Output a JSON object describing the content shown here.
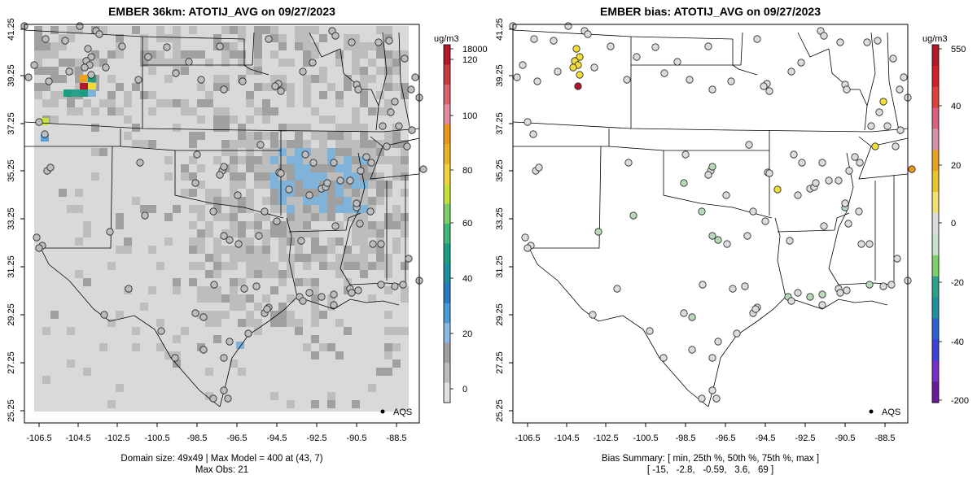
{
  "left": {
    "title": "EMBER 36km: ATOTIJ_AVG on 09/27/2023",
    "legend_label": "AQS",
    "cbar_unit": "ug/m3",
    "cbar_ticks": [
      "18000",
      "120",
      "100",
      "80",
      "60",
      "40",
      "20",
      "0"
    ],
    "summary_line1": "Domain size: 49x49 | Max Model = 400 at (43, 7)",
    "summary_line2": "Max Obs: 21"
  },
  "right": {
    "title": "EMBER bias: ATOTIJ_AVG on 09/27/2023",
    "legend_label": "AQS",
    "cbar_unit": "ug/m3",
    "cbar_ticks": [
      "550",
      "40",
      "20",
      "0",
      "-20",
      "-40",
      "-200"
    ],
    "summary_line1": "Bias Summary: [ min, 25th %, 50th %, 75th %, max ]",
    "summary_line2": "[ -15,   -2.8,   -0.59,   3.6,   69 ]"
  },
  "axes": {
    "x_ticks": [
      "-106.5",
      "-104.5",
      "-102.5",
      "-100.5",
      "-98.5",
      "-96.5",
      "-94.5",
      "-92.5",
      "-90.5",
      "-88.5"
    ],
    "y_ticks": [
      "25.25",
      "27.25",
      "29.25",
      "31.25",
      "33.25",
      "35.25",
      "37.25",
      "39.25",
      "41.25"
    ]
  },
  "colors": {
    "model_gray_light": "#d9d9d9",
    "model_gray_mid": "#bdbdbd",
    "model_gray_dark": "#a0a0a0",
    "model_blue": "#7fb3d9",
    "bias_neutral": "#dcdcdc",
    "bias_pos": "#f2dc3c",
    "bias_neg": "#b7d9b7",
    "hotspot": "#b2182b",
    "orange": "#e8961e"
  }
}
